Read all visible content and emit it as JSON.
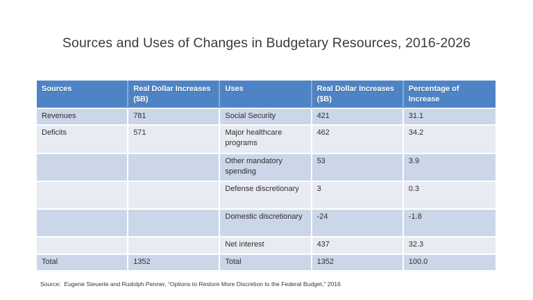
{
  "title": "Sources and Uses of Changes in Budgetary Resources, 2016-2026",
  "table": {
    "columns": [
      "Sources",
      "Real Dollar Increases ($B)",
      "Uses",
      "Real Dollar Increases ($B)",
      "Percentage of Increase"
    ],
    "rows": [
      [
        "Revenues",
        "781",
        "Social Security",
        "421",
        "31.1"
      ],
      [
        "Deficits",
        "571",
        "Major healthcare programs",
        "462",
        "34.2"
      ],
      [
        "",
        "",
        "Other mandatory spending",
        "53",
        "3.9"
      ],
      [
        "",
        "",
        "Defense discretionary",
        "3",
        "0.3"
      ],
      [
        "",
        "",
        "Domestic discretionary",
        "-24",
        "-1.8"
      ],
      [
        "",
        "",
        "Net interest",
        "437",
        "32.3"
      ],
      [
        "Total",
        "1352",
        "Total",
        "1352",
        "100.0"
      ]
    ]
  },
  "footnote": "Source:  Eugene Steuerle and Rudolph Penner, “Options to Restore More Discretion to the Federal Budget,” 2016",
  "colors": {
    "header-bg": "#4E84C5",
    "header-divider": "#86ABD8",
    "band-dark": "#CBD6E8",
    "band-light": "#E9EBF2",
    "body-text": "#2F2F2F",
    "title-text": "#3A3A3A"
  }
}
